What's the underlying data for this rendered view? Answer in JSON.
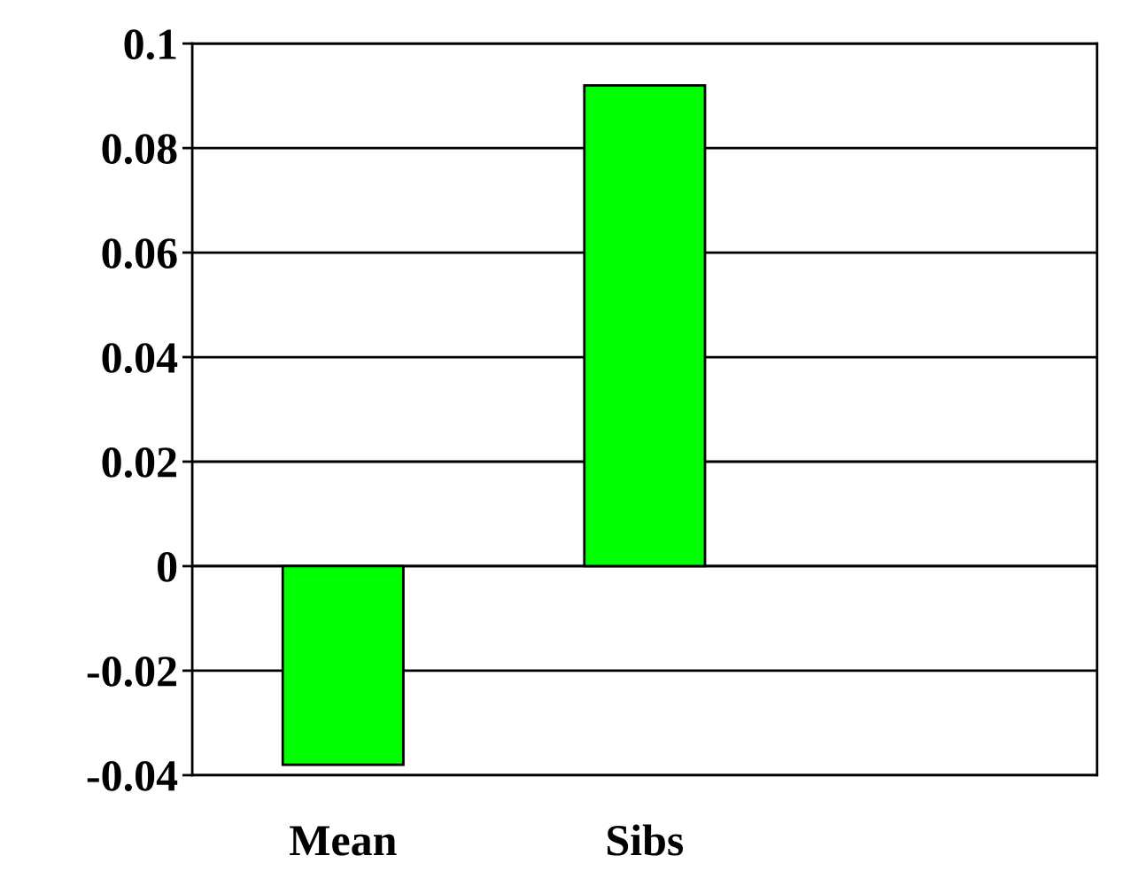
{
  "chart_data": {
    "type": "bar",
    "categories": [
      "Mean",
      "Sibs",
      null
    ],
    "values": [
      -0.038,
      0.092,
      null
    ],
    "color": "#00ff00",
    "ylim": [
      -0.04,
      0.1
    ],
    "yticks": [
      {
        "value": -0.04,
        "label": "-0.04"
      },
      {
        "value": -0.02,
        "label": "-0.02"
      },
      0,
      0.02,
      0.04,
      0.06,
      0.08,
      0.1
    ],
    "grid": "y"
  }
}
